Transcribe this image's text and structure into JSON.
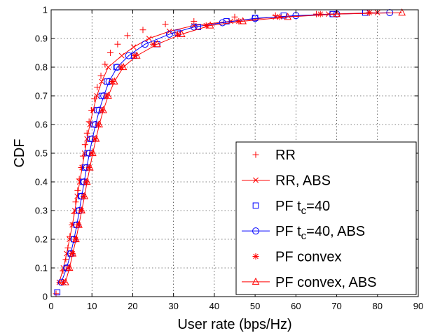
{
  "chart_data": {
    "type": "line",
    "title": "",
    "xlabel": "User rate (bps/Hz)",
    "ylabel": "CDF",
    "xlim": [
      0,
      90
    ],
    "ylim": [
      0,
      1
    ],
    "xticks": [
      "0",
      "10",
      "20",
      "30",
      "40",
      "50",
      "60",
      "70",
      "80",
      "90"
    ],
    "yticks": [
      "0",
      "0.1",
      "0.2",
      "0.3",
      "0.4",
      "0.5",
      "0.6",
      "0.7",
      "0.8",
      "0.9",
      "1"
    ],
    "grid": true,
    "legend_position": "bottom-right",
    "series": [
      {
        "name": "RR",
        "color": "#ff0000",
        "marker": "plus",
        "line": false,
        "points": [
          [
            1.2,
            0.01
          ],
          [
            2.1,
            0.05
          ],
          [
            2.9,
            0.09
          ],
          [
            3.6,
            0.13
          ],
          [
            4.1,
            0.17
          ],
          [
            4.6,
            0.21
          ],
          [
            5.1,
            0.25
          ],
          [
            5.6,
            0.29
          ],
          [
            6.0,
            0.33
          ],
          [
            6.5,
            0.37
          ],
          [
            6.9,
            0.41
          ],
          [
            7.4,
            0.45
          ],
          [
            7.8,
            0.49
          ],
          [
            8.3,
            0.53
          ],
          [
            8.8,
            0.57
          ],
          [
            9.3,
            0.61
          ],
          [
            9.9,
            0.65
          ],
          [
            10.6,
            0.69
          ],
          [
            11.3,
            0.73
          ],
          [
            12.2,
            0.77
          ],
          [
            13.2,
            0.81
          ],
          [
            14.5,
            0.85
          ],
          [
            16.3,
            0.88
          ],
          [
            18.7,
            0.91
          ],
          [
            22.5,
            0.93
          ],
          [
            28.0,
            0.95
          ],
          [
            35.0,
            0.96
          ],
          [
            45.0,
            0.975
          ],
          [
            55.0,
            0.98
          ],
          [
            65.0,
            0.985
          ],
          [
            78.0,
            0.99
          ]
        ]
      },
      {
        "name": "RR, ABS",
        "color": "#ff0000",
        "marker": "x",
        "line": true,
        "points": [
          [
            2.0,
            0.05
          ],
          [
            3.0,
            0.1
          ],
          [
            3.8,
            0.15
          ],
          [
            4.5,
            0.2
          ],
          [
            5.2,
            0.25
          ],
          [
            5.8,
            0.3
          ],
          [
            6.4,
            0.35
          ],
          [
            7.0,
            0.4
          ],
          [
            7.6,
            0.45
          ],
          [
            8.2,
            0.5
          ],
          [
            8.8,
            0.55
          ],
          [
            9.5,
            0.6
          ],
          [
            10.3,
            0.65
          ],
          [
            11.2,
            0.7
          ],
          [
            12.4,
            0.75
          ],
          [
            14.0,
            0.8
          ],
          [
            17.3,
            0.84
          ],
          [
            20.2,
            0.87
          ],
          [
            24.0,
            0.9
          ],
          [
            29.0,
            0.925
          ],
          [
            35.0,
            0.945
          ],
          [
            44.0,
            0.96
          ],
          [
            55.0,
            0.975
          ],
          [
            68.0,
            0.985
          ],
          [
            80.0,
            0.99
          ]
        ]
      },
      {
        "name": "PF t_c=40",
        "color": "#0000ff",
        "marker": "square",
        "line": false,
        "points": [
          [
            1.5,
            0.015
          ],
          [
            3.8,
            0.1
          ],
          [
            4.8,
            0.15
          ],
          [
            5.6,
            0.2
          ],
          [
            6.2,
            0.25
          ],
          [
            6.8,
            0.3
          ],
          [
            7.3,
            0.35
          ],
          [
            7.8,
            0.4
          ],
          [
            8.3,
            0.45
          ],
          [
            8.9,
            0.5
          ],
          [
            9.6,
            0.55
          ],
          [
            10.4,
            0.6
          ],
          [
            11.3,
            0.65
          ],
          [
            12.4,
            0.7
          ],
          [
            13.7,
            0.75
          ],
          [
            16.0,
            0.8
          ],
          [
            20.3,
            0.84
          ],
          [
            26.0,
            0.88
          ],
          [
            31.0,
            0.92
          ],
          [
            36.0,
            0.94
          ],
          [
            43.0,
            0.96
          ],
          [
            50.0,
            0.972
          ],
          [
            57.0,
            0.98
          ],
          [
            69.0,
            0.985
          ],
          [
            77.0,
            0.99
          ]
        ]
      },
      {
        "name": "PF t_c=40, ABS",
        "color": "#0000ff",
        "marker": "circle",
        "line": true,
        "points": [
          [
            2.5,
            0.05
          ],
          [
            3.8,
            0.1
          ],
          [
            4.8,
            0.15
          ],
          [
            5.6,
            0.2
          ],
          [
            6.3,
            0.25
          ],
          [
            6.9,
            0.3
          ],
          [
            7.5,
            0.35
          ],
          [
            8.1,
            0.4
          ],
          [
            8.7,
            0.45
          ],
          [
            9.4,
            0.5
          ],
          [
            10.1,
            0.55
          ],
          [
            10.9,
            0.6
          ],
          [
            11.8,
            0.65
          ],
          [
            12.9,
            0.7
          ],
          [
            14.2,
            0.75
          ],
          [
            16.2,
            0.8
          ],
          [
            19.0,
            0.84
          ],
          [
            23.0,
            0.88
          ],
          [
            29.0,
            0.915
          ],
          [
            35.0,
            0.94
          ],
          [
            42.0,
            0.955
          ],
          [
            50.0,
            0.97
          ],
          [
            60.0,
            0.98
          ],
          [
            70.0,
            0.985
          ],
          [
            83.0,
            0.99
          ]
        ]
      },
      {
        "name": "PF convex",
        "color": "#ff0000",
        "marker": "asterisk",
        "line": false,
        "points": [
          [
            3.0,
            0.05
          ],
          [
            4.3,
            0.1
          ],
          [
            5.2,
            0.15
          ],
          [
            6.0,
            0.2
          ],
          [
            6.7,
            0.25
          ],
          [
            7.4,
            0.3
          ],
          [
            8.0,
            0.35
          ],
          [
            8.6,
            0.4
          ],
          [
            9.3,
            0.45
          ],
          [
            10.0,
            0.5
          ],
          [
            10.8,
            0.55
          ],
          [
            11.6,
            0.6
          ],
          [
            12.5,
            0.65
          ],
          [
            13.6,
            0.7
          ],
          [
            15.0,
            0.75
          ],
          [
            17.2,
            0.8
          ],
          [
            20.5,
            0.84
          ],
          [
            25.0,
            0.88
          ],
          [
            31.0,
            0.915
          ],
          [
            38.0,
            0.945
          ],
          [
            46.0,
            0.96
          ],
          [
            56.0,
            0.975
          ],
          [
            66.0,
            0.985
          ],
          [
            78.0,
            0.99
          ]
        ]
      },
      {
        "name": "PF convex, ABS",
        "color": "#ff0000",
        "marker": "triangle",
        "line": true,
        "points": [
          [
            3.5,
            0.05
          ],
          [
            4.5,
            0.1
          ],
          [
            5.3,
            0.15
          ],
          [
            6.1,
            0.2
          ],
          [
            6.8,
            0.25
          ],
          [
            7.5,
            0.3
          ],
          [
            8.2,
            0.35
          ],
          [
            8.8,
            0.4
          ],
          [
            9.5,
            0.45
          ],
          [
            10.2,
            0.5
          ],
          [
            11.0,
            0.55
          ],
          [
            11.8,
            0.6
          ],
          [
            12.8,
            0.65
          ],
          [
            14.0,
            0.7
          ],
          [
            15.5,
            0.75
          ],
          [
            17.7,
            0.8
          ],
          [
            21.0,
            0.84
          ],
          [
            26.0,
            0.88
          ],
          [
            32.0,
            0.915
          ],
          [
            39.0,
            0.945
          ],
          [
            47.0,
            0.96
          ],
          [
            58.0,
            0.975
          ],
          [
            70.0,
            0.985
          ],
          [
            86.0,
            0.99
          ]
        ]
      }
    ]
  },
  "legend": {
    "items": [
      {
        "name_main": "RR",
        "name_sub": "",
        "name_rest": ""
      },
      {
        "name_main": "RR, ABS",
        "name_sub": "",
        "name_rest": ""
      },
      {
        "name_main": "PF t",
        "name_sub": "c",
        "name_rest": "=40"
      },
      {
        "name_main": "PF t",
        "name_sub": "c",
        "name_rest": "=40, ABS"
      },
      {
        "name_main": "PF convex",
        "name_sub": "",
        "name_rest": ""
      },
      {
        "name_main": "PF convex, ABS",
        "name_sub": "",
        "name_rest": ""
      }
    ]
  }
}
